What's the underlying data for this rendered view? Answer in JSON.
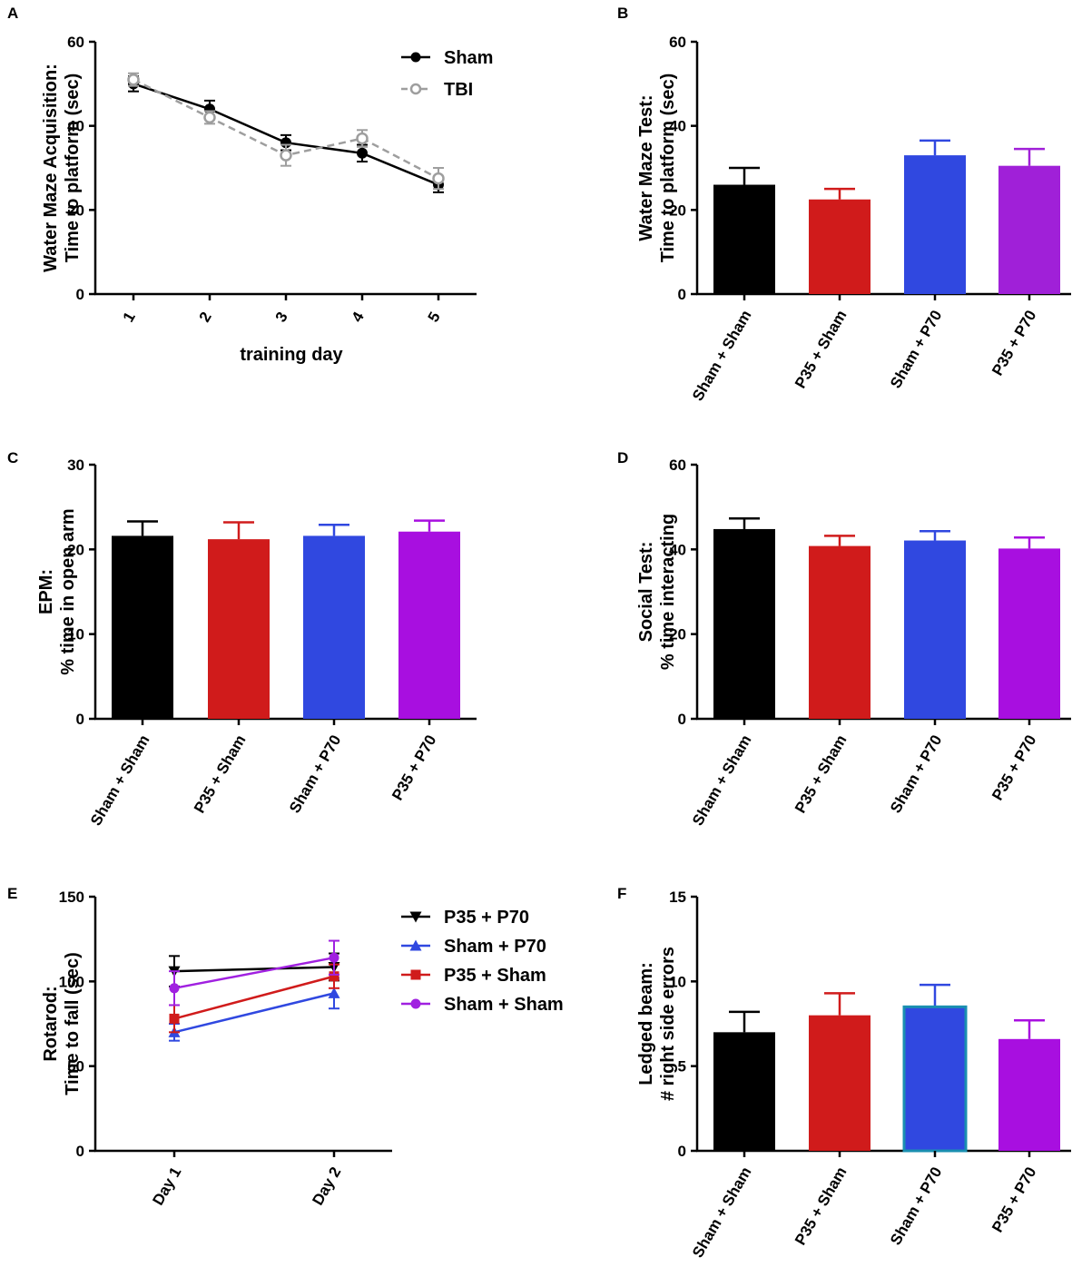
{
  "chart_data": [
    {
      "panel": "A",
      "type": "line",
      "xlabel": "training day",
      "ylabel": [
        "Water  Maze Acquisition:",
        "Time to platform (sec)"
      ],
      "ylim": [
        0,
        60
      ],
      "yticks": [
        0,
        20,
        40,
        60
      ],
      "categories": [
        "1",
        "2",
        "3",
        "4",
        "5"
      ],
      "series": [
        {
          "name": "Sham",
          "color": "#000000",
          "dash": false,
          "marker": "circle-filled",
          "values": [
            50,
            44,
            36,
            33.5,
            26
          ],
          "errors": [
            1.8,
            2,
            1.8,
            2,
            1.8
          ]
        },
        {
          "name": "TBI",
          "color": "#9e9e9e",
          "dash": true,
          "marker": "circle-open",
          "values": [
            51,
            42,
            33,
            37,
            27.5
          ],
          "errors": [
            1.5,
            1.5,
            2.5,
            2,
            2.5
          ]
        }
      ],
      "legend": "top-right"
    },
    {
      "panel": "B",
      "type": "bar",
      "ylabel": [
        "Water Maze Test:",
        "Time to platform (sec)"
      ],
      "ylim": [
        0,
        60
      ],
      "yticks": [
        0,
        20,
        40,
        60
      ],
      "categories": [
        "Sham + Sham",
        "P35 + Sham",
        "Sham + P70",
        "P35 + P70"
      ],
      "values": [
        26,
        22.5,
        33,
        30.5
      ],
      "errors": [
        4,
        2.5,
        3.5,
        4
      ],
      "colors": [
        "#000000",
        "#d01b1b",
        "#3048e0",
        "#a020d8"
      ]
    },
    {
      "panel": "C",
      "type": "bar",
      "ylabel": [
        "EPM:",
        "% time in open arm"
      ],
      "ylim": [
        0,
        30
      ],
      "yticks": [
        0,
        10,
        20,
        30
      ],
      "categories": [
        "Sham + Sham",
        "P35 + Sham",
        "Sham + P70",
        "P35 + P70"
      ],
      "values": [
        21.6,
        21.2,
        21.6,
        22.1
      ],
      "errors": [
        1.7,
        2,
        1.3,
        1.3
      ],
      "colors": [
        "#000000",
        "#d01b1b",
        "#3048e0",
        "#a80fe0"
      ]
    },
    {
      "panel": "D",
      "type": "bar",
      "ylabel": [
        "Social Test:",
        "% time interacting"
      ],
      "ylim": [
        0,
        60
      ],
      "yticks": [
        0,
        20,
        40,
        60
      ],
      "categories": [
        "Sham + Sham",
        "P35 + Sham",
        "Sham + P70",
        "P35 + P70"
      ],
      "values": [
        44.8,
        40.8,
        42.1,
        40.2
      ],
      "errors": [
        2.5,
        2.4,
        2.2,
        2.6
      ],
      "colors": [
        "#000000",
        "#d01b1b",
        "#3048e0",
        "#a80fe0"
      ]
    },
    {
      "panel": "E",
      "type": "line",
      "ylabel": [
        "Rotarod:",
        "Time to fall (sec)"
      ],
      "ylim": [
        0,
        150
      ],
      "yticks": [
        0,
        50,
        100,
        150
      ],
      "categories": [
        "Day 1",
        "Day 2"
      ],
      "series": [
        {
          "name": "P35 + P70",
          "color": "#000000",
          "marker": "triangle-down",
          "values": [
            106,
            108.5
          ],
          "errors": [
            9,
            8
          ]
        },
        {
          "name": "Sham + P70",
          "color": "#3048e0",
          "marker": "triangle-up",
          "values": [
            70,
            93
          ],
          "errors": [
            5,
            9
          ]
        },
        {
          "name": "P35 + Sham",
          "color": "#d01b1b",
          "marker": "square",
          "values": [
            78,
            103
          ],
          "errors": [
            8,
            7
          ]
        },
        {
          "name": "Sham + Sham",
          "color": "#a020e0",
          "marker": "circle",
          "values": [
            96,
            114
          ],
          "errors": [
            10,
            10
          ]
        }
      ],
      "legend": "right"
    },
    {
      "panel": "F",
      "type": "bar",
      "ylabel": [
        "Ledged beam:",
        "# right side errors"
      ],
      "ylim": [
        0,
        15
      ],
      "yticks": [
        0,
        5,
        10,
        15
      ],
      "categories": [
        "Sham + Sham",
        "P35 + Sham",
        "Sham + P70",
        "P35 + P70"
      ],
      "values": [
        7,
        8,
        8.5,
        6.6
      ],
      "errors": [
        1.2,
        1.3,
        1.3,
        1.1
      ],
      "colors": [
        "#000000",
        "#d01b1b",
        "#3048e0",
        "#a80fe0"
      ],
      "outline_colors": [
        null,
        null,
        "#1a8fb0",
        null
      ]
    }
  ]
}
